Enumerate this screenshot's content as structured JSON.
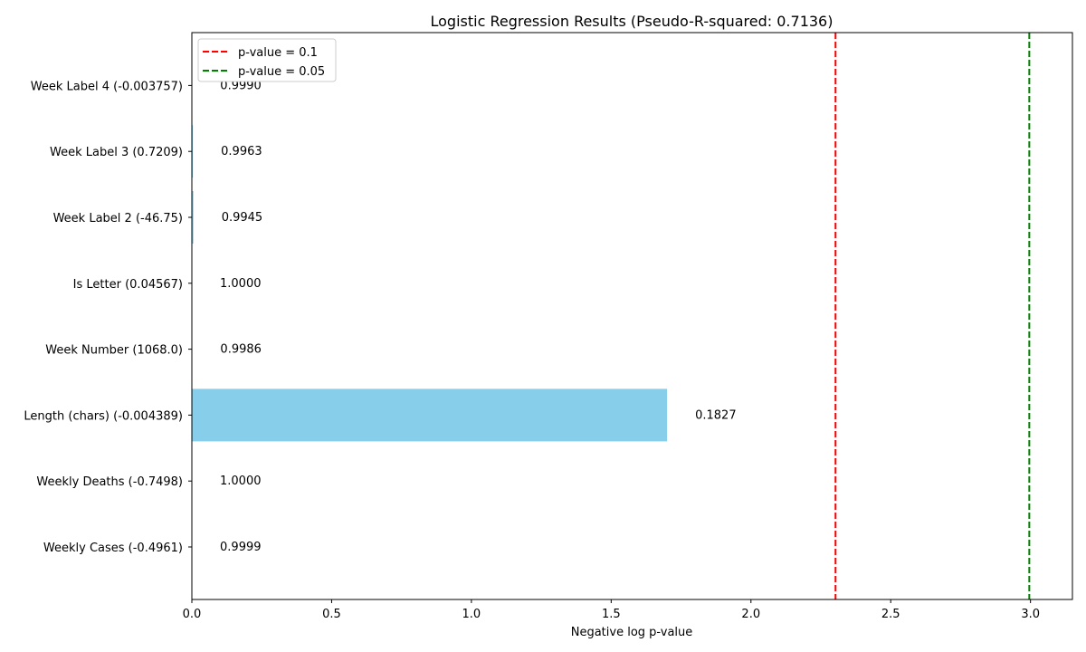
{
  "chart_data": {
    "type": "bar",
    "orientation": "horizontal",
    "title": "Logistic Regression Results (Pseudo-R-squared: 0.7136)",
    "xlabel": "Negative log p-value",
    "ylabel": "",
    "xlim": [
      0,
      3.15
    ],
    "xticks": [
      {
        "value": 0.0,
        "label": "0.0"
      },
      {
        "value": 0.5,
        "label": "0.5"
      },
      {
        "value": 1.0,
        "label": "1.0"
      },
      {
        "value": 1.5,
        "label": "1.5"
      },
      {
        "value": 2.0,
        "label": "2.0"
      },
      {
        "value": 2.5,
        "label": "2.5"
      },
      {
        "value": 3.0,
        "label": "3.0"
      }
    ],
    "bar_color": "#87ceeb",
    "categories": [
      "Weekly Cases (-0.4961)",
      "Weekly Deaths (-0.7498)",
      "Length (chars) (-0.004389)",
      "Week Number (1068.0)",
      "Is Letter (0.04567)",
      "Week Label 2 (-46.75)",
      "Week Label 3 (0.7209)",
      "Week Label 4 (-0.003757)"
    ],
    "values": [
      0.0001,
      0.0,
      1.7,
      0.0014,
      0.0,
      0.0055,
      0.0037,
      0.001
    ],
    "data_labels": [
      "0.9999",
      "1.0000",
      "0.1827",
      "0.9986",
      "1.0000",
      "0.9945",
      "0.9963",
      "0.9990"
    ],
    "reference_lines": [
      {
        "label": "p-value = 0.1",
        "x": 2.302585,
        "color": "#ff0000"
      },
      {
        "label": "p-value = 0.05",
        "x": 2.995732,
        "color": "#008000"
      }
    ],
    "legend_position": "top-left",
    "grid": false
  }
}
